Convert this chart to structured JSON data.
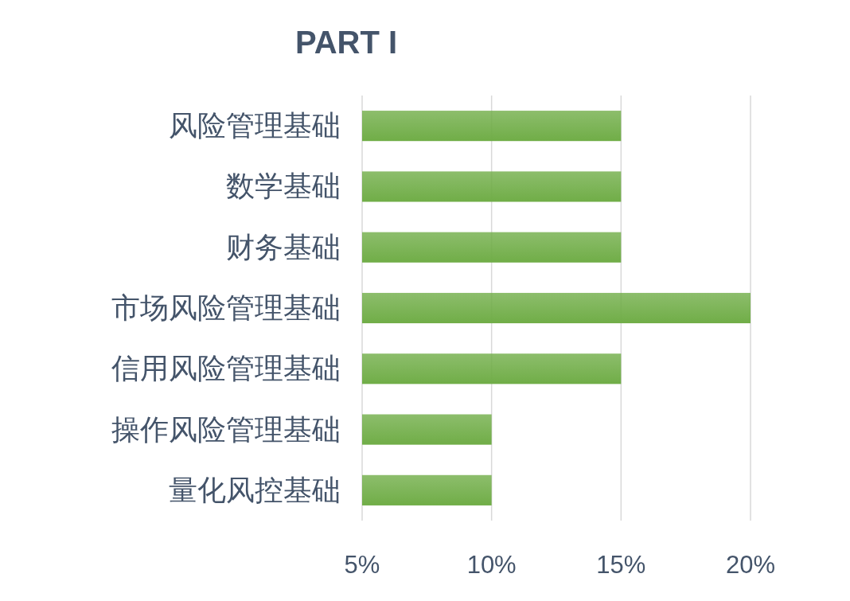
{
  "chart_data": {
    "type": "bar",
    "orientation": "horizontal",
    "title": "PART I",
    "categories": [
      "风险管理基础",
      "数学基础",
      "财务基础",
      "市场风险管理基础",
      "信用风险管理基础",
      "操作风险管理基础",
      "量化风控基础"
    ],
    "values": [
      15,
      15,
      15,
      20,
      15,
      10,
      10
    ],
    "color": "#70ad47",
    "xlim": [
      5,
      20
    ],
    "xticks": [
      {
        "value": 5,
        "label": "5%"
      },
      {
        "value": 10,
        "label": "10%"
      },
      {
        "value": 15,
        "label": "15%"
      },
      {
        "value": 20,
        "label": "20%"
      }
    ],
    "grid": "x"
  }
}
